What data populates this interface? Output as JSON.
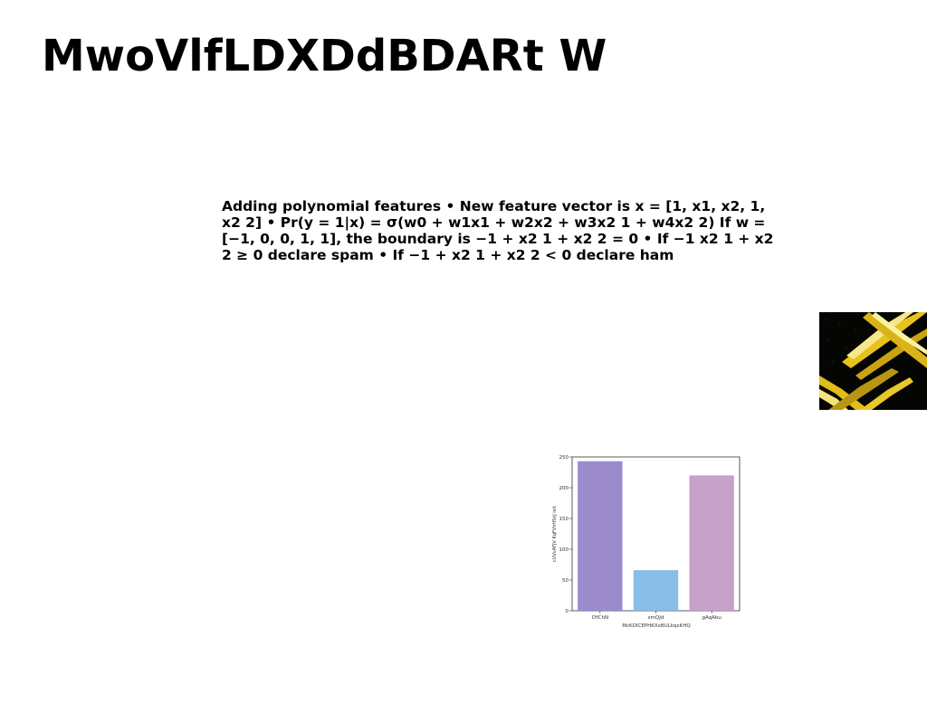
{
  "slide": {
    "title": "MwoVlfLDXDdBDARt W",
    "body": "Adding polynomial features • New feature vector is x = [1, x1, x2, 1, x2 2] • Pr(y = 1|x) = σ(w0 + w1x1 + w2x2 + w3x2 1 + w4x2 2) If w = [−1, 0, 0, 1, 1], the boundary is −1 + x2 1 + x2 2 = 0 • If −1 x2 1 + x2 2 ≥ 0 declare spam • If −1 + x2 1 + x2 2 < 0 declare ham",
    "image": {
      "icon": "gold-ribbons-image",
      "colors": [
        "#000000",
        "#e8c81c",
        "#f7ec7a"
      ]
    }
  },
  "chart_data": {
    "type": "bar",
    "categories": [
      "OYChN",
      "smQJd",
      "gAqAbu"
    ],
    "values": [
      243,
      66,
      220
    ],
    "colors": [
      "#9b8bcd",
      "#88bde6",
      "#c6a1ca"
    ],
    "xlabel": "McKDICEPHKXxBULkqxKHQ",
    "ylabel": "cUVvAFJV KqFVhHSkJ ieit",
    "ylim": [
      0,
      250
    ],
    "yticks": [
      0,
      50,
      100,
      150,
      200,
      250
    ],
    "grid": false
  }
}
